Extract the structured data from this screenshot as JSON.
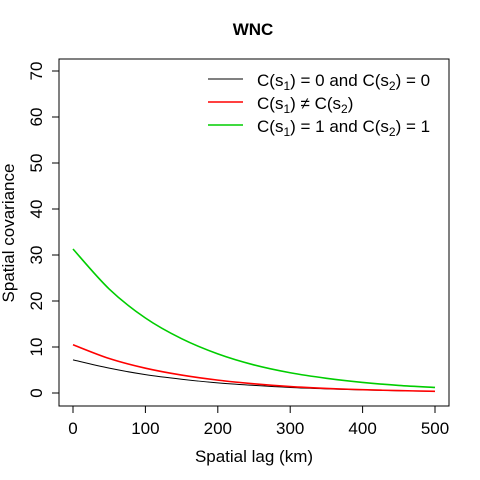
{
  "chart_data": {
    "type": "line",
    "title": "WNC",
    "xlabel": "Spatial lag (km)",
    "ylabel": "Spatial covariance",
    "xlim": [
      0,
      500
    ],
    "ylim": [
      0,
      70
    ],
    "x_ticks": [
      0,
      100,
      200,
      300,
      400,
      500
    ],
    "y_ticks": [
      0,
      10,
      20,
      30,
      40,
      50,
      60,
      70
    ],
    "grid": false,
    "legend_position": "top-right",
    "legend_box": false,
    "series": [
      {
        "name": "C(s1) = 0 and C(s2) = 0",
        "color": "#000000",
        "x": [
          0,
          50,
          100,
          150,
          200,
          250,
          300,
          350,
          400,
          450,
          500
        ],
        "y": [
          7.2,
          5.4,
          4.0,
          3.0,
          2.2,
          1.65,
          1.2,
          0.9,
          0.68,
          0.5,
          0.37
        ]
      },
      {
        "name": "C(s1) ≠ C(s2)",
        "color": "#ff0000",
        "x": [
          0,
          50,
          100,
          150,
          200,
          250,
          300,
          350,
          400,
          450,
          500
        ],
        "y": [
          10.5,
          7.5,
          5.4,
          3.9,
          2.8,
          2.0,
          1.4,
          1.0,
          0.72,
          0.52,
          0.37
        ]
      },
      {
        "name": "C(s1) = 1 and C(s2) = 1",
        "color": "#00cd00",
        "x": [
          0,
          50,
          100,
          150,
          200,
          250,
          300,
          350,
          400,
          450,
          500
        ],
        "y": [
          31.3,
          22.6,
          16.3,
          11.8,
          8.5,
          6.1,
          4.4,
          3.2,
          2.3,
          1.65,
          1.2
        ]
      }
    ]
  },
  "legend_labels": [
    [
      {
        "t": "C"
      },
      {
        "t": "("
      },
      {
        "t": "s"
      },
      {
        "t": "1",
        "sub": true
      },
      {
        "t": ") = 0 and C("
      },
      {
        "t": "s"
      },
      {
        "t": "2",
        "sub": true
      },
      {
        "t": ") = 0"
      }
    ],
    [
      {
        "t": "C"
      },
      {
        "t": "("
      },
      {
        "t": "s"
      },
      {
        "t": "1",
        "sub": true
      },
      {
        "t": ") ≠ C("
      },
      {
        "t": "s"
      },
      {
        "t": "2",
        "sub": true
      },
      {
        "t": ")"
      }
    ],
    [
      {
        "t": "C"
      },
      {
        "t": "("
      },
      {
        "t": "s"
      },
      {
        "t": "1",
        "sub": true
      },
      {
        "t": ") = 1 and C("
      },
      {
        "t": "s"
      },
      {
        "t": "2",
        "sub": true
      },
      {
        "t": ") = 1"
      }
    ]
  ]
}
